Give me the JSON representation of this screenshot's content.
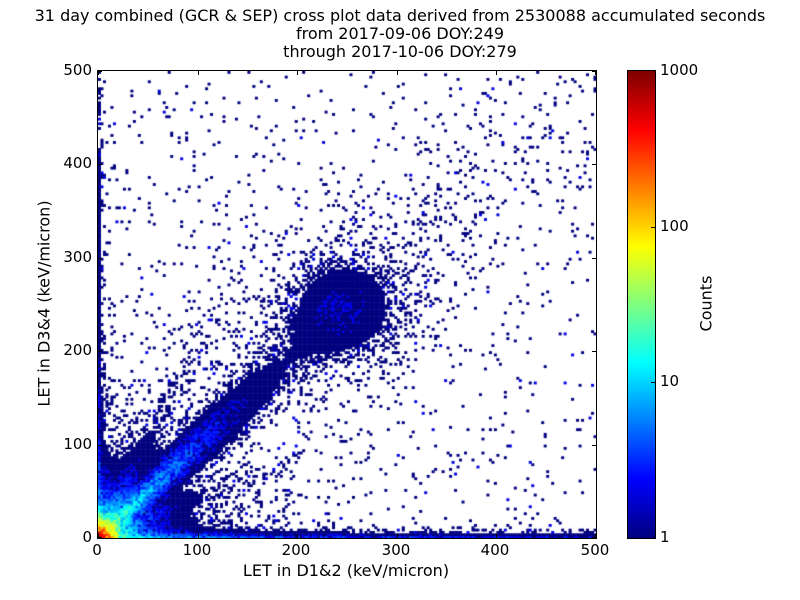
{
  "page": {
    "background": "#ffffff"
  },
  "title": {
    "line1": "31 day combined (GCR & SEP) cross plot data derived from 2530088 accumulated seconds",
    "line2": "from 2017-09-06 DOY:249",
    "line3": "through 2017-10-06 DOY:279"
  },
  "chart_data": {
    "type": "heatmap",
    "subtype": "2d-histogram cross plot (log-color density scatter)",
    "title": "31 day combined (GCR & SEP) cross plot data derived from 2530088 accumulated seconds",
    "subtitle": [
      "from 2017-09-06 DOY:249",
      "through 2017-10-06 DOY:279"
    ],
    "accumulated_seconds": 2530088,
    "date_from": "2017-09-06",
    "doy_from": 249,
    "date_through": "2017-10-06",
    "doy_through": 279,
    "xlabel": "LET in D1&2 (keV/micron)",
    "ylabel": "LET in D3&4 (keV/micron)",
    "xlim": [
      0,
      500
    ],
    "ylim": [
      0,
      500
    ],
    "x_ticks": [
      0,
      100,
      200,
      300,
      400,
      500
    ],
    "y_ticks": [
      0,
      100,
      200,
      300,
      400,
      500
    ],
    "x_tick_labels": [
      "0",
      "100",
      "200",
      "300",
      "400",
      "500"
    ],
    "y_tick_labels": [
      "0",
      "100",
      "200",
      "300",
      "400",
      "500"
    ],
    "grid": false,
    "colorbar": {
      "label": "Counts",
      "scale": "log",
      "min": 1,
      "max": 1000,
      "tick_labels": [
        "1000",
        "100",
        "10",
        "1"
      ],
      "colormap": "jet",
      "low_color": "#000080",
      "high_color": "#800000"
    },
    "features": [
      "intense hotspot at the origin (LET < ~25 keV/micron in both detector pairs) reaching ~1000 counts per bin (dark red core, orange/yellow/green/cyan rings)",
      "coincident diagonal band y = x running from the origin to about (430,430); cyan (~10-30 counts) below ~(60,60), fading to single counts, with a mild clump near (245,245)",
      "dense strip of low-count events along y = 0 across the full 0-500 x range",
      "thin strip of events along x = 0 across the full 0-500 y range",
      "fainter radial streaks from the origin above and below the main diagonal",
      "sparse isolated single-count events (dark navy pixels) scattered over the whole plane"
    ],
    "density_model": {
      "bins": 200,
      "seed": 20170906,
      "cap": 1400,
      "components": [
        {
          "kind": "radial",
          "amplitudes": [
            1300,
            40,
            3
          ],
          "scales": [
            5,
            14,
            38
          ]
        },
        {
          "kind": "ray",
          "slope": 1.0,
          "amp": 18,
          "base_width": 2,
          "width_growth": 0.06,
          "length_scale": 70,
          "tail_amp": 0.35,
          "tail_length": 260
        },
        {
          "kind": "blob",
          "x": 245,
          "y": 245,
          "sigma": 33,
          "amp": 1.1
        },
        {
          "kind": "ray",
          "slope": 2.1,
          "amp": 2.5,
          "base_width": 2,
          "width_growth": 0.05,
          "length_scale": 70,
          "tail_amp": 0,
          "tail_length": 1
        },
        {
          "kind": "ray",
          "slope": 0.45,
          "amp": 2.0,
          "base_width": 2,
          "width_growth": 0.05,
          "length_scale": 60,
          "tail_amp": 0,
          "tail_length": 1
        },
        {
          "kind": "corner_cloud",
          "amp": 3.0,
          "x_scale": 50,
          "y_scale": 35
        },
        {
          "kind": "hband",
          "amp": 9,
          "y_scale": 3.2,
          "x_floor": 0.28,
          "x_scale": 130
        },
        {
          "kind": "vband",
          "amp": 3.5,
          "x_scale": 2.6,
          "y_floor": 0.22,
          "y_scale": 130
        },
        {
          "kind": "background",
          "amp": 0.045,
          "scale": 550,
          "floor": 0.007
        }
      ]
    }
  }
}
